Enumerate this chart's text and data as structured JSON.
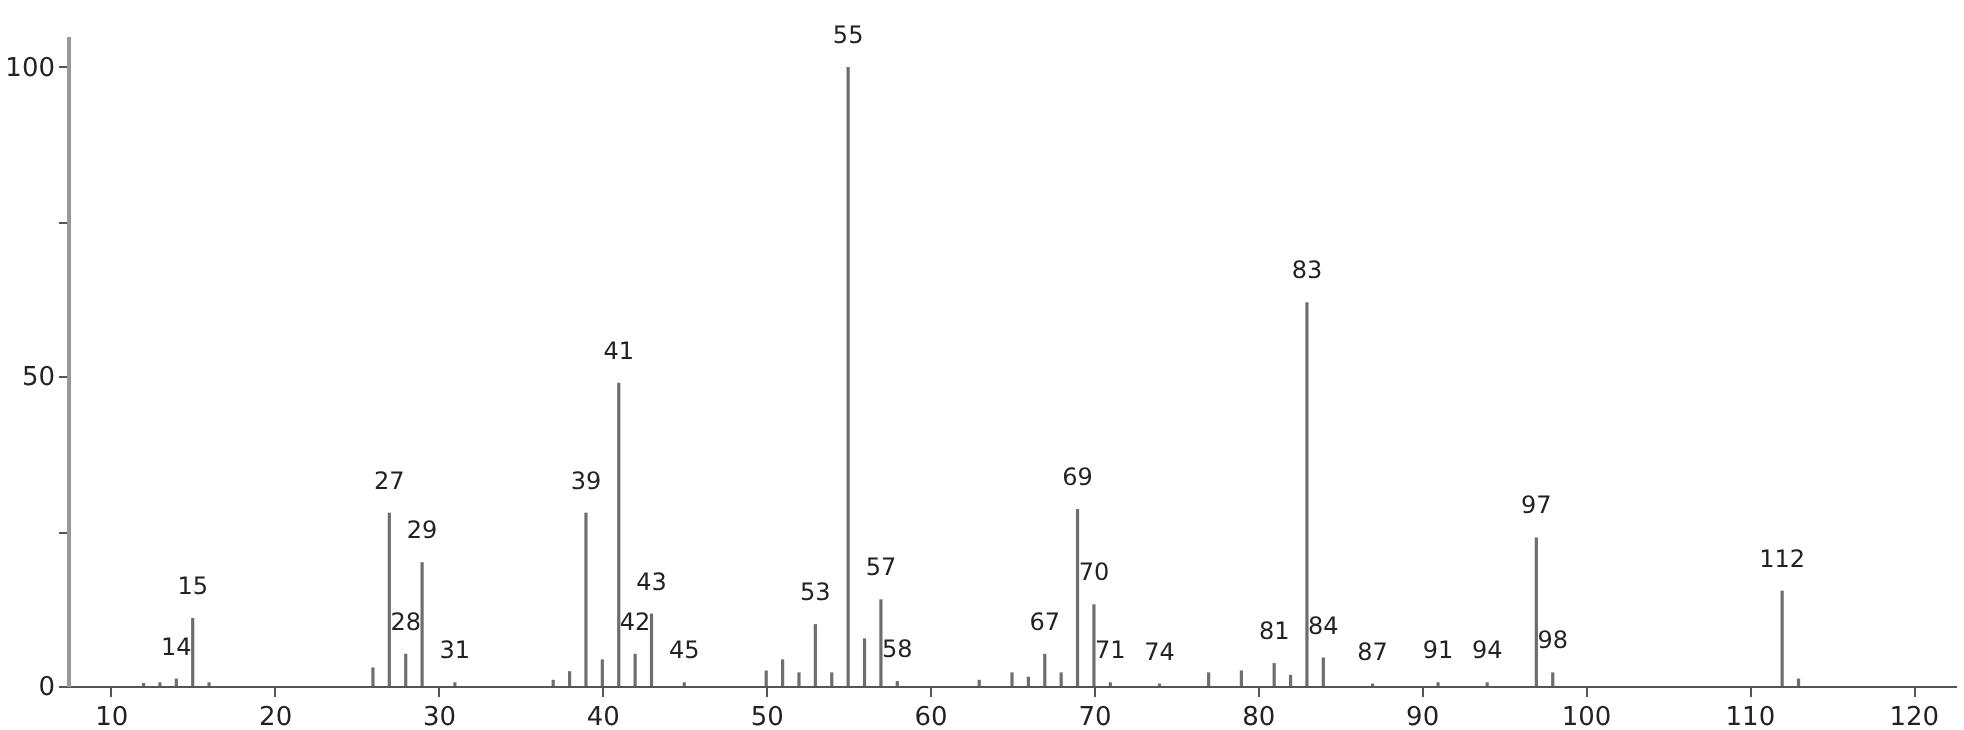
{
  "chart_data": {
    "type": "bar",
    "color": "#6e6e6e",
    "x": [
      12,
      13,
      14,
      15,
      16,
      26,
      27,
      28,
      29,
      31,
      37,
      38,
      39,
      40,
      41,
      42,
      43,
      45,
      50,
      51,
      52,
      53,
      54,
      55,
      56,
      57,
      58,
      63,
      65,
      66,
      67,
      68,
      69,
      70,
      71,
      74,
      77,
      79,
      81,
      82,
      83,
      84,
      87,
      91,
      94,
      97,
      98,
      112,
      113
    ],
    "values": [
      0.5,
      0.6,
      1.2,
      11,
      0.6,
      3,
      28,
      5.2,
      20,
      0.6,
      1,
      2.4,
      28,
      4.3,
      49,
      5.2,
      11.7,
      0.6,
      2.5,
      4.3,
      2.2,
      10,
      2.2,
      100,
      7.7,
      14,
      0.8,
      1,
      2.2,
      1.5,
      5.2,
      2.2,
      28.6,
      13.2,
      0.6,
      0.4,
      2.2,
      2.5,
      3.7,
      1.8,
      62,
      4.6,
      0.4,
      0.6,
      0.6,
      24,
      2.2,
      15.4,
      1.2
    ],
    "xlim": [
      8,
      122
    ],
    "xticks": [
      10,
      20,
      30,
      40,
      50,
      60,
      70,
      80,
      90,
      100,
      110,
      120
    ],
    "ylim": [
      0,
      105
    ],
    "yticks": [
      0,
      {
        "value": 25,
        "label": null
      },
      50,
      {
        "value": 75,
        "label": null
      },
      100
    ],
    "grid": false,
    "annotations": [
      {
        "text": "14",
        "x": 14,
        "y": 1.2
      },
      {
        "text": "15",
        "x": 15,
        "y": 11
      },
      {
        "text": "27",
        "x": 27,
        "y": 28
      },
      {
        "text": "28",
        "x": 28,
        "y": 5.2
      },
      {
        "text": "29",
        "x": 29,
        "y": 20
      },
      {
        "text": "31",
        "x": 31,
        "y": 0.6
      },
      {
        "text": "39",
        "x": 39,
        "y": 28
      },
      {
        "text": "41",
        "x": 41,
        "y": 49
      },
      {
        "text": "42",
        "x": 42,
        "y": 5.2
      },
      {
        "text": "43",
        "x": 43,
        "y": 11.7
      },
      {
        "text": "45",
        "x": 45,
        "y": 0.6
      },
      {
        "text": "53",
        "x": 53,
        "y": 10
      },
      {
        "text": "55",
        "x": 55,
        "y": 100
      },
      {
        "text": "57",
        "x": 57,
        "y": 14
      },
      {
        "text": "58",
        "x": 58,
        "y": 0.8
      },
      {
        "text": "67",
        "x": 67,
        "y": 5.2
      },
      {
        "text": "69",
        "x": 69,
        "y": 28.6
      },
      {
        "text": "70",
        "x": 70,
        "y": 13.2
      },
      {
        "text": "71",
        "x": 71,
        "y": 0.6
      },
      {
        "text": "74",
        "x": 74,
        "y": 0.4
      },
      {
        "text": "81",
        "x": 81,
        "y": 3.7
      },
      {
        "text": "83",
        "x": 83,
        "y": 62
      },
      {
        "text": "84",
        "x": 84,
        "y": 4.6
      },
      {
        "text": "87",
        "x": 87,
        "y": 0.4
      },
      {
        "text": "91",
        "x": 91,
        "y": 0.6
      },
      {
        "text": "94",
        "x": 94,
        "y": 0.6
      },
      {
        "text": "97",
        "x": 97,
        "y": 24
      },
      {
        "text": "98",
        "x": 98,
        "y": 2.2
      },
      {
        "text": "112",
        "x": 112,
        "y": 15.4
      }
    ]
  }
}
